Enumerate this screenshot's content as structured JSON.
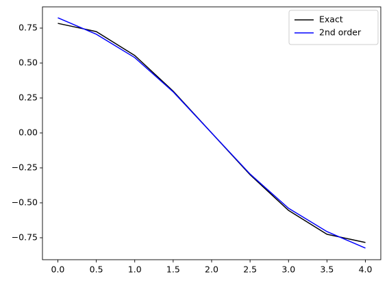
{
  "chart_data": {
    "type": "line",
    "x": [
      0.0,
      0.5,
      1.0,
      1.5,
      2.0,
      2.5,
      3.0,
      3.5,
      4.0
    ],
    "series": [
      {
        "name": "Exact",
        "color": "#000000",
        "values": [
          0.784,
          0.725,
          0.554,
          0.299,
          0.0,
          -0.299,
          -0.554,
          -0.725,
          -0.784
        ]
      },
      {
        "name": "2nd order",
        "color": "#0000ff",
        "values": [
          0.824,
          0.706,
          0.539,
          0.294,
          0.0,
          -0.294,
          -0.539,
          -0.706,
          -0.824
        ]
      }
    ],
    "xlim": [
      -0.2,
      4.2
    ],
    "ylim": [
      -0.907,
      0.902
    ],
    "xticks": [
      {
        "value": 0,
        "label": "0.0"
      },
      {
        "value": 0.5,
        "label": "0.5"
      },
      {
        "value": 1,
        "label": "1.0"
      },
      {
        "value": 1.5,
        "label": "1.5"
      },
      {
        "value": 2,
        "label": "2.0"
      },
      {
        "value": 2.5,
        "label": "2.5"
      },
      {
        "value": 3,
        "label": "3.0"
      },
      {
        "value": 3.5,
        "label": "3.5"
      },
      {
        "value": 4,
        "label": "4.0"
      }
    ],
    "yticks": [
      {
        "value": -0.75,
        "label": "−0.75"
      },
      {
        "value": -0.5,
        "label": "−0.50"
      },
      {
        "value": -0.25,
        "label": "−0.25"
      },
      {
        "value": 0,
        "label": "0.00"
      },
      {
        "value": 0.25,
        "label": "0.25"
      },
      {
        "value": 0.5,
        "label": "0.50"
      },
      {
        "value": 0.75,
        "label": "0.75"
      }
    ],
    "legend": "upper right"
  }
}
